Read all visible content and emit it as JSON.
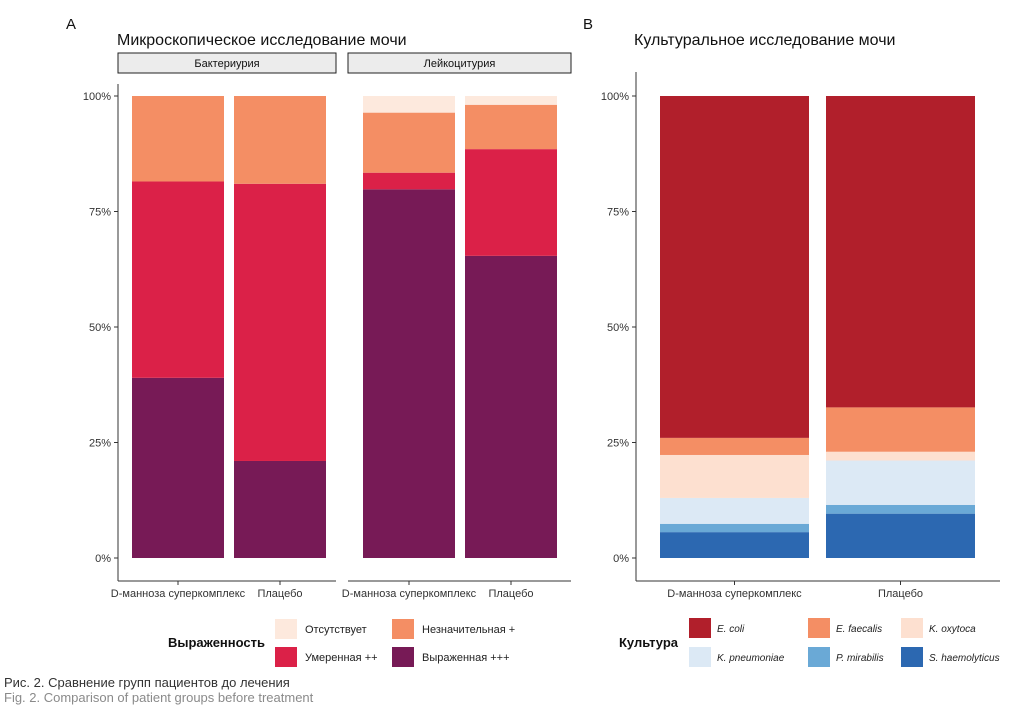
{
  "chart_data": [
    {
      "type": "bar",
      "stacked": true,
      "panel_letter": "A",
      "title": "Микроскопическое исследование мочи",
      "y_ticks": [
        "0%",
        "25%",
        "50%",
        "75%",
        "100%"
      ],
      "ylim": [
        0,
        100
      ],
      "legend": {
        "title": "Выраженность",
        "entries": [
          {
            "key": "none",
            "label": "Отсутствует",
            "color": "#fde9dd"
          },
          {
            "key": "slight",
            "label": "Незначительная +",
            "color": "#f48e64"
          },
          {
            "key": "moderate",
            "label": "Умеренная ++",
            "color": "#db2148"
          },
          {
            "key": "severe",
            "label": "Выраженная +++",
            "color": "#771a56"
          }
        ]
      },
      "facets": [
        {
          "label": "Бактериурия",
          "categories": [
            "D-манноза суперкомплекс",
            "Плацебо"
          ],
          "series": [
            {
              "key": "severe",
              "values": [
                39,
                21
              ]
            },
            {
              "key": "moderate",
              "values": [
                42.5,
                60
              ]
            },
            {
              "key": "slight",
              "values": [
                18.5,
                19
              ]
            },
            {
              "key": "none",
              "values": [
                0,
                0
              ]
            }
          ]
        },
        {
          "label": "Лейкоцитурия",
          "categories": [
            "D-манноза суперкомплекс",
            "Плацебо"
          ],
          "series": [
            {
              "key": "severe",
              "values": [
                79.8,
                65.4
              ]
            },
            {
              "key": "moderate",
              "values": [
                3.6,
                23.1
              ]
            },
            {
              "key": "slight",
              "values": [
                13,
                9.6
              ]
            },
            {
              "key": "none",
              "values": [
                3.6,
                1.9
              ]
            }
          ]
        }
      ]
    },
    {
      "type": "bar",
      "stacked": true,
      "panel_letter": "B",
      "title": "Культуральное исследование мочи",
      "y_ticks": [
        "0%",
        "25%",
        "50%",
        "75%",
        "100%"
      ],
      "ylim": [
        0,
        100
      ],
      "categories": [
        "D-манноза суперкомплекс",
        "Плацебо"
      ],
      "legend": {
        "title": "Культура",
        "entries": [
          {
            "key": "ecoli",
            "label": "E. coli",
            "color": "#b11f2b"
          },
          {
            "key": "efaecalis",
            "label": "E. faecalis",
            "color": "#f48e64"
          },
          {
            "key": "koxytoca",
            "label": "K. oxytoca",
            "color": "#fde0d0"
          },
          {
            "key": "kpneumoniae",
            "label": "K. pneumoniae",
            "color": "#dce9f5"
          },
          {
            "key": "pmirabilis",
            "label": "P. mirabilis",
            "color": "#6aa9d6"
          },
          {
            "key": "shaemolyticus",
            "label": "S. haemolyticus",
            "color": "#2c68b1"
          }
        ]
      },
      "series": [
        {
          "key": "shaemolyticus",
          "values": [
            5.6,
            9.6
          ]
        },
        {
          "key": "pmirabilis",
          "values": [
            1.8,
            1.9
          ]
        },
        {
          "key": "kpneumoniae",
          "values": [
            5.6,
            9.6
          ]
        },
        {
          "key": "koxytoca",
          "values": [
            9.3,
            1.9
          ]
        },
        {
          "key": "efaecalis",
          "values": [
            3.7,
            9.6
          ]
        },
        {
          "key": "ecoli",
          "values": [
            74,
            67.4
          ]
        }
      ]
    }
  ],
  "caption": {
    "ru": "Рис. 2. Сравнение групп пациентов до лечения",
    "en": "Fig. 2. Comparison of patient groups before treatment"
  }
}
